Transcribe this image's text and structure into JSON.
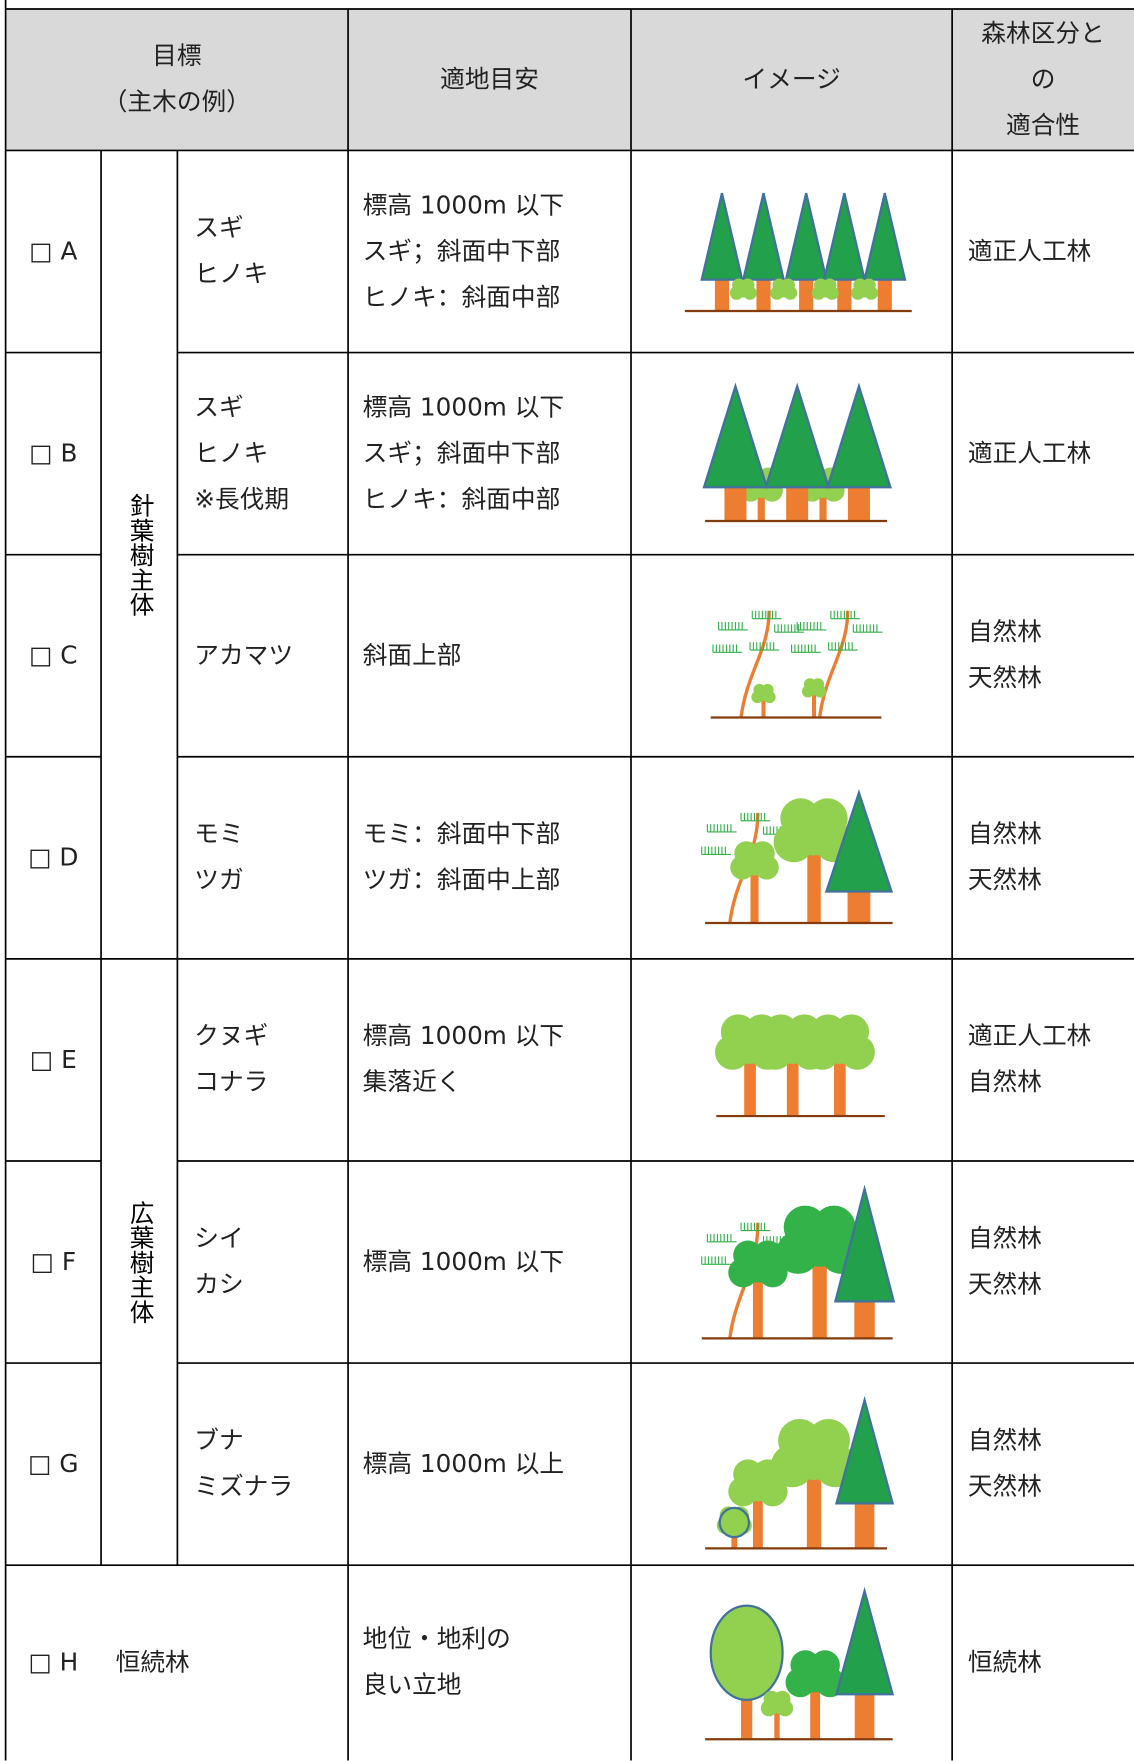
{
  "header": {
    "goal": [
      "目標",
      "（主木の例）"
    ],
    "site": "適地目安",
    "image": "イメージ",
    "forest_class": [
      "森林区分と",
      "の",
      "適合性"
    ]
  },
  "groups": [
    {
      "label": "針葉樹主体"
    },
    {
      "label": "広葉樹主体"
    }
  ],
  "rows": [
    {
      "mark": "□ A",
      "species": [
        "スギ",
        "ヒノキ"
      ],
      "site": [
        "標高 1000m 以下",
        "スギ；斜面中下部",
        "ヒノキ：斜面中部"
      ],
      "forest_class": [
        "適正人工林"
      ]
    },
    {
      "mark": "□ B",
      "species": [
        "スギ",
        "ヒノキ",
        "※長伐期"
      ],
      "site": [
        "標高 1000m 以下",
        "スギ；斜面中下部",
        "ヒノキ：斜面中部"
      ],
      "forest_class": [
        "適正人工林"
      ]
    },
    {
      "mark": "□ C",
      "species": [
        "アカマツ"
      ],
      "site": [
        "斜面上部"
      ],
      "forest_class": [
        "自然林",
        "天然林"
      ]
    },
    {
      "mark": "□ D",
      "species": [
        "モミ",
        "ツガ"
      ],
      "site": [
        "モミ：斜面中下部",
        "ツガ：斜面中上部"
      ],
      "forest_class": [
        "自然林",
        "天然林"
      ]
    },
    {
      "mark": "□ E",
      "species": [
        "クヌギ",
        "コナラ"
      ],
      "site": [
        "標高 1000m 以下",
        "集落近く"
      ],
      "forest_class": [
        "適正人工林",
        "自然林"
      ]
    },
    {
      "mark": "□ F",
      "species": [
        "シイ",
        "カシ"
      ],
      "site": [
        "標高 1000m 以下"
      ],
      "forest_class": [
        "自然林",
        "天然林"
      ]
    },
    {
      "mark": "□ G",
      "species": [
        "ブナ",
        "ミズナラ"
      ],
      "site": [
        "標高 1000m 以上"
      ],
      "forest_class": [
        "自然林",
        "天然林"
      ]
    },
    {
      "mark": "□ H",
      "species": [
        "恒続林"
      ],
      "site": [
        "地位・地利の",
        "良い立地"
      ],
      "forest_class": [
        "恒続林"
      ]
    }
  ]
}
